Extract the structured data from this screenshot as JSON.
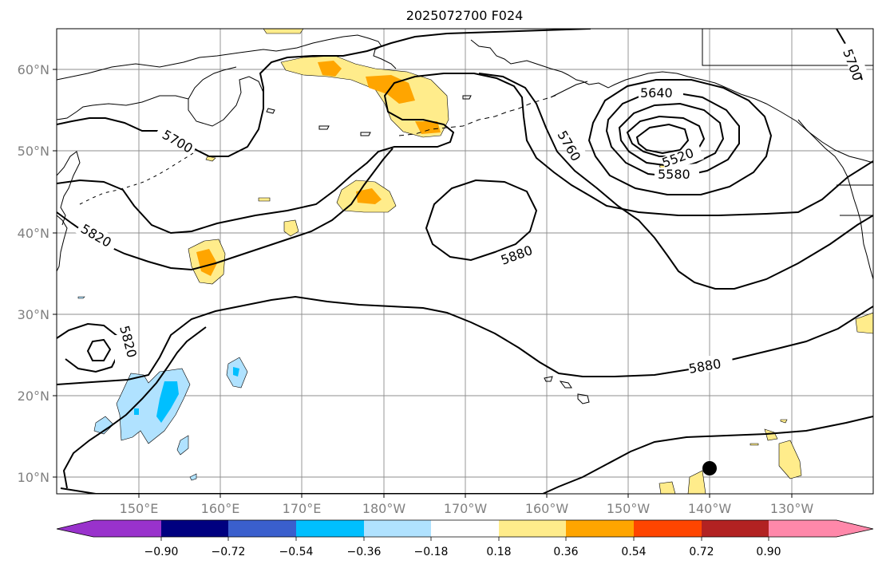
{
  "title": "2025072700 F024",
  "lon_labels": [
    "150°E",
    "160°E",
    "170°E",
    "180°W",
    "170°W",
    "160°W",
    "150°W",
    "140°W",
    "130°W"
  ],
  "lat_labels": [
    "60°N",
    "50°N",
    "40°N",
    "30°N",
    "20°N",
    "10°N"
  ],
  "contour_labels": [
    "5700",
    "5700",
    "5640",
    "5760",
    "5520",
    "5580",
    "5820",
    "5880",
    "5820",
    "5880"
  ],
  "colorbar": {
    "tick_labels": [
      "−0.90",
      "−0.72",
      "−0.54",
      "−0.36",
      "−0.18",
      "0.18",
      "0.36",
      "0.54",
      "0.72",
      "0.90"
    ],
    "colors": [
      "#9932cc",
      "#000080",
      "#3a5fcd",
      "#00bfff",
      "#b0e2ff",
      "#ffffff",
      "#ffec8b",
      "#ffa500",
      "#ff4500",
      "#b22222",
      "#ff88aa"
    ]
  }
}
